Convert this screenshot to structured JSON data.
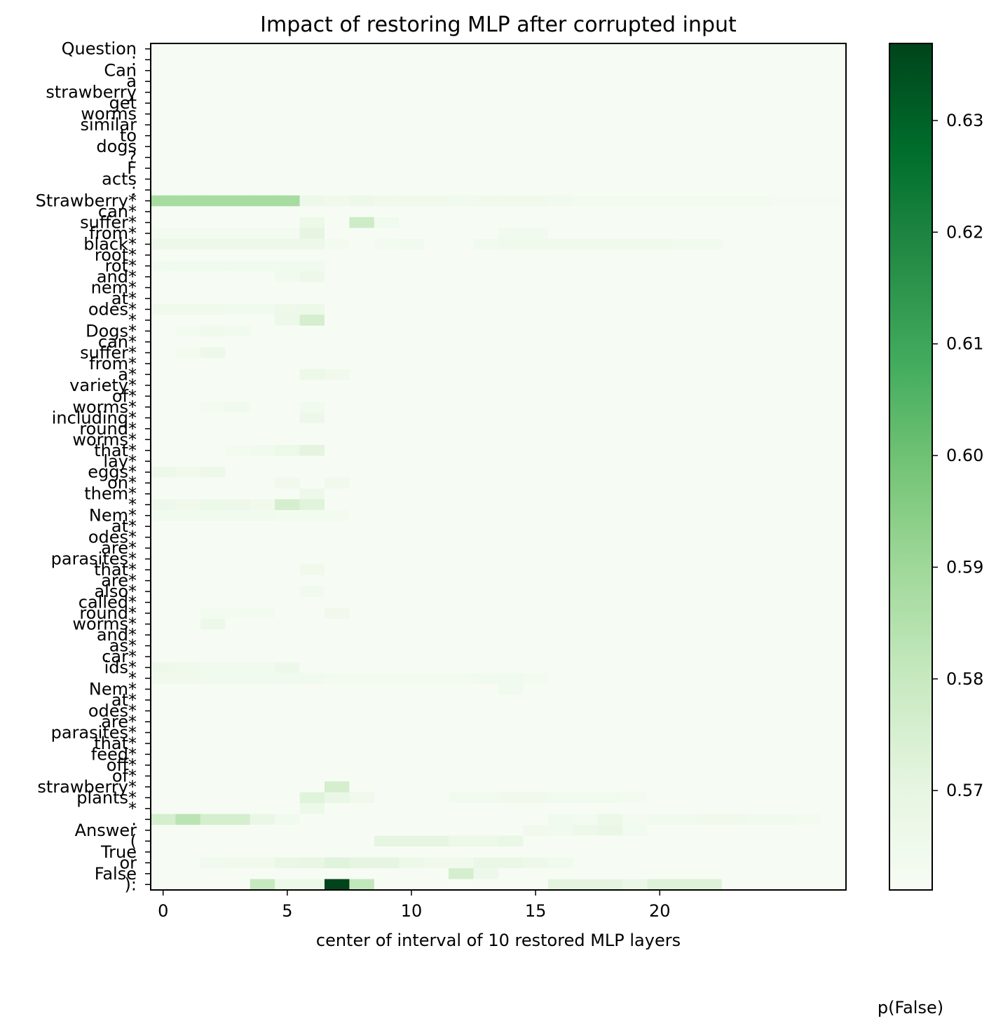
{
  "chart_data": {
    "type": "heatmap",
    "title": "Impact of restoring MLP after corrupted input",
    "xlabel": "center of interval of 10 restored MLP layers",
    "ylabel": "",
    "colorbar_label": "p(False)",
    "colormap": "Greens",
    "colors": {
      "low": "#f7fcf5",
      "high": "#00441b"
    },
    "x_ticks": [
      0,
      5,
      10,
      15,
      20
    ],
    "x_range": [
      -0.5,
      27.5
    ],
    "columns": 28,
    "vmin": 0.5611,
    "vmax": 0.6369,
    "colorbar_ticks": [
      "0.57",
      "0.58",
      "0.59",
      "0.60",
      "0.61",
      "0.62",
      "0.63"
    ],
    "tokens": [
      "Question",
      ":",
      "Can",
      "a",
      "strawberry",
      "get",
      "worms",
      "similar",
      "to",
      "dogs",
      "?",
      "F",
      "acts",
      ":",
      "Strawberry*",
      "can*",
      "suffer*",
      "from*",
      "black*",
      "root*",
      "rot*",
      "and*",
      "nem*",
      "at*",
      "odes*",
      "*",
      "Dogs*",
      "can*",
      "suffer*",
      "from*",
      "a*",
      "variety*",
      "of*",
      "worms*",
      "including*",
      "round*",
      "worms*",
      "that*",
      "lay*",
      "eggs*",
      "on*",
      "them*",
      "*",
      "Nem*",
      "at*",
      "odes*",
      "are*",
      "parasites*",
      "that*",
      "are*",
      "also*",
      "called*",
      "round*",
      "worms*",
      "and*",
      "as*",
      "car*",
      "ids*",
      "*",
      "Nem*",
      "at*",
      "odes*",
      "are*",
      "parasites*",
      "that*",
      "feed*",
      "off*",
      "of*",
      "strawberry*",
      "plants*",
      "*",
      ".",
      "Answer",
      "(",
      "True",
      "or",
      "False",
      "):"
    ],
    "highlight_rows": [
      {
        "row": 14,
        "cols": [
          0,
          1,
          2,
          3,
          4,
          5,
          6,
          7,
          8,
          9,
          10,
          11,
          12,
          13,
          14,
          15,
          16,
          17,
          18,
          19,
          20,
          21,
          22,
          23,
          24,
          25,
          26,
          27
        ],
        "values": [
          0.588,
          0.588,
          0.588,
          0.588,
          0.588,
          0.588,
          0.566,
          0.565,
          0.566,
          0.565,
          0.565,
          0.565,
          0.564,
          0.565,
          0.565,
          0.565,
          0.564,
          0.563,
          0.563,
          0.563,
          0.563,
          0.563,
          0.563,
          0.563,
          0.563,
          0.562,
          0.562,
          0.562
        ]
      },
      {
        "row": 16,
        "cols": [
          6,
          8,
          9
        ],
        "values": [
          0.567,
          0.578,
          0.564
        ]
      },
      {
        "row": 17,
        "cols": [
          0,
          1,
          2,
          3,
          4,
          5,
          6,
          14,
          15
        ],
        "values": [
          0.563,
          0.563,
          0.563,
          0.563,
          0.563,
          0.563,
          0.57,
          0.564,
          0.564
        ]
      },
      {
        "row": 18,
        "cols": [
          0,
          1,
          2,
          3,
          4,
          5,
          6,
          7,
          9,
          10,
          13,
          14,
          15,
          16,
          17,
          18,
          19,
          20,
          21,
          22
        ],
        "values": [
          0.566,
          0.566,
          0.566,
          0.566,
          0.566,
          0.566,
          0.566,
          0.563,
          0.563,
          0.564,
          0.564,
          0.565,
          0.565,
          0.565,
          0.565,
          0.565,
          0.565,
          0.565,
          0.564,
          0.564
        ]
      },
      {
        "row": 20,
        "cols": [
          0,
          1,
          2,
          3,
          4,
          5,
          6
        ],
        "values": [
          0.564,
          0.564,
          0.564,
          0.564,
          0.564,
          0.564,
          0.564
        ]
      },
      {
        "row": 21,
        "cols": [
          5,
          6
        ],
        "values": [
          0.564,
          0.566
        ]
      },
      {
        "row": 24,
        "cols": [
          0,
          1,
          2,
          3,
          4,
          5,
          6
        ],
        "values": [
          0.565,
          0.565,
          0.565,
          0.564,
          0.564,
          0.566,
          0.567
        ]
      },
      {
        "row": 25,
        "cols": [
          5,
          6
        ],
        "values": [
          0.567,
          0.576
        ]
      },
      {
        "row": 26,
        "cols": [
          1,
          2,
          3
        ],
        "values": [
          0.563,
          0.565,
          0.564
        ]
      },
      {
        "row": 28,
        "cols": [
          1,
          2
        ],
        "values": [
          0.563,
          0.566
        ]
      },
      {
        "row": 30,
        "cols": [
          6,
          7
        ],
        "values": [
          0.567,
          0.565
        ]
      },
      {
        "row": 33,
        "cols": [
          2,
          3,
          6
        ],
        "values": [
          0.563,
          0.564,
          0.564
        ]
      },
      {
        "row": 34,
        "cols": [
          6
        ],
        "values": [
          0.566
        ]
      },
      {
        "row": 37,
        "cols": [
          3,
          4,
          5,
          6
        ],
        "values": [
          0.563,
          0.564,
          0.567,
          0.571
        ]
      },
      {
        "row": 39,
        "cols": [
          0,
          1,
          2
        ],
        "values": [
          0.566,
          0.565,
          0.566
        ]
      },
      {
        "row": 40,
        "cols": [
          5,
          7
        ],
        "values": [
          0.565,
          0.565
        ]
      },
      {
        "row": 41,
        "cols": [
          6
        ],
        "values": [
          0.566
        ]
      },
      {
        "row": 42,
        "cols": [
          0,
          1,
          2,
          3,
          4,
          5,
          6
        ],
        "values": [
          0.566,
          0.565,
          0.567,
          0.566,
          0.565,
          0.576,
          0.572
        ]
      },
      {
        "row": 43,
        "cols": [
          0,
          1,
          2,
          3,
          4,
          5,
          6,
          7
        ],
        "values": [
          0.564,
          0.564,
          0.564,
          0.564,
          0.564,
          0.563,
          0.563,
          0.563
        ]
      },
      {
        "row": 48,
        "cols": [
          6
        ],
        "values": [
          0.565
        ]
      },
      {
        "row": 50,
        "cols": [
          6
        ],
        "values": [
          0.564
        ]
      },
      {
        "row": 52,
        "cols": [
          2,
          3,
          4,
          7
        ],
        "values": [
          0.563,
          0.563,
          0.563,
          0.565
        ]
      },
      {
        "row": 53,
        "cols": [
          2
        ],
        "values": [
          0.566
        ]
      },
      {
        "row": 57,
        "cols": [
          0,
          1,
          2,
          3,
          4,
          5
        ],
        "values": [
          0.566,
          0.565,
          0.564,
          0.564,
          0.564,
          0.566
        ]
      },
      {
        "row": 58,
        "cols": [
          0,
          1,
          2,
          3,
          4,
          5,
          6,
          7,
          8,
          9,
          10,
          11,
          12,
          13,
          14,
          15
        ],
        "values": [
          0.565,
          0.565,
          0.564,
          0.564,
          0.564,
          0.564,
          0.564,
          0.563,
          0.563,
          0.563,
          0.563,
          0.563,
          0.563,
          0.564,
          0.564,
          0.563
        ]
      },
      {
        "row": 59,
        "cols": [
          14
        ],
        "values": [
          0.564
        ]
      },
      {
        "row": 68,
        "cols": [
          7
        ],
        "values": [
          0.576
        ]
      },
      {
        "row": 69,
        "cols": [
          6,
          7,
          8,
          12,
          13,
          14,
          15,
          16,
          17,
          18,
          19
        ],
        "values": [
          0.572,
          0.568,
          0.565,
          0.564,
          0.564,
          0.565,
          0.565,
          0.564,
          0.564,
          0.564,
          0.563
        ]
      },
      {
        "row": 70,
        "cols": [
          6
        ],
        "values": [
          0.567
        ]
      },
      {
        "row": 71,
        "cols": [
          0,
          1,
          2,
          3,
          4,
          5,
          16,
          17,
          18,
          19,
          20,
          21,
          22,
          23,
          24,
          25,
          26
        ],
        "values": [
          0.576,
          0.583,
          0.576,
          0.576,
          0.568,
          0.564,
          0.564,
          0.563,
          0.567,
          0.563,
          0.564,
          0.564,
          0.565,
          0.565,
          0.564,
          0.564,
          0.563
        ]
      },
      {
        "row": 72,
        "cols": [
          15,
          16,
          17,
          18,
          19
        ],
        "values": [
          0.565,
          0.564,
          0.566,
          0.568,
          0.564
        ]
      },
      {
        "row": 73,
        "cols": [
          9,
          10,
          11,
          12,
          13,
          14
        ],
        "values": [
          0.57,
          0.57,
          0.57,
          0.567,
          0.567,
          0.568
        ]
      },
      {
        "row": 75,
        "cols": [
          2,
          3,
          4,
          5,
          6,
          7,
          8,
          9,
          10,
          11,
          12,
          13,
          14,
          15,
          16
        ],
        "values": [
          0.564,
          0.565,
          0.565,
          0.568,
          0.569,
          0.572,
          0.57,
          0.57,
          0.567,
          0.565,
          0.565,
          0.568,
          0.568,
          0.566,
          0.564
        ]
      },
      {
        "row": 76,
        "cols": [
          12,
          13
        ],
        "values": [
          0.576,
          0.566
        ]
      },
      {
        "row": 77,
        "cols": [
          4,
          5,
          6,
          7,
          8,
          16,
          17,
          18,
          19,
          20,
          21,
          22
        ],
        "values": [
          0.58,
          0.567,
          0.567,
          0.6369,
          0.581,
          0.571,
          0.571,
          0.571,
          0.568,
          0.573,
          0.573,
          0.573
        ]
      }
    ]
  }
}
